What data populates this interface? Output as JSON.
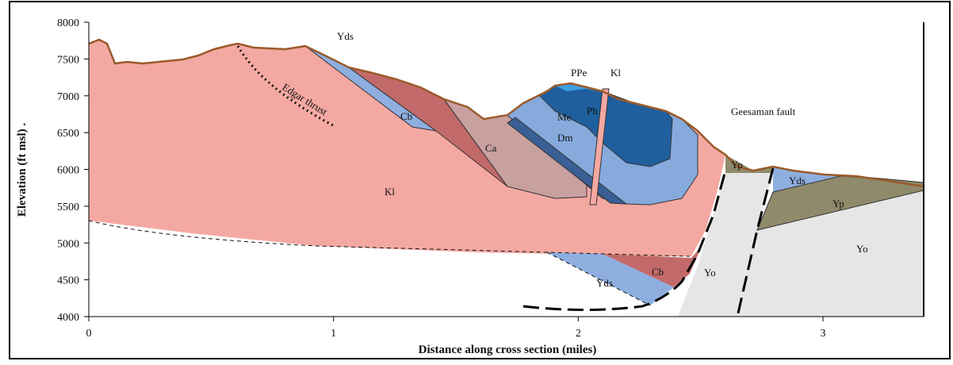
{
  "axes": {
    "y_title": "Elevation (ft msl) .",
    "x_title": "Distance along cross section (miles)",
    "ylim": [
      4000,
      8000
    ],
    "yticks": [
      4000,
      4500,
      5000,
      5500,
      6000,
      6500,
      7000,
      7500,
      8000
    ],
    "xlim": [
      0,
      3
    ],
    "xticks": [
      0,
      1,
      2,
      3
    ]
  },
  "labels": [
    "Yds",
    "PPe",
    "Kl",
    "Edgar thrust",
    "Cb",
    "Me",
    "Ph",
    "Ca",
    "Dm",
    "Geesaman fault",
    "Kl",
    "Yp",
    "Yds",
    "Yp",
    "Yo",
    "Yo",
    "Cb",
    "Yds"
  ]
}
